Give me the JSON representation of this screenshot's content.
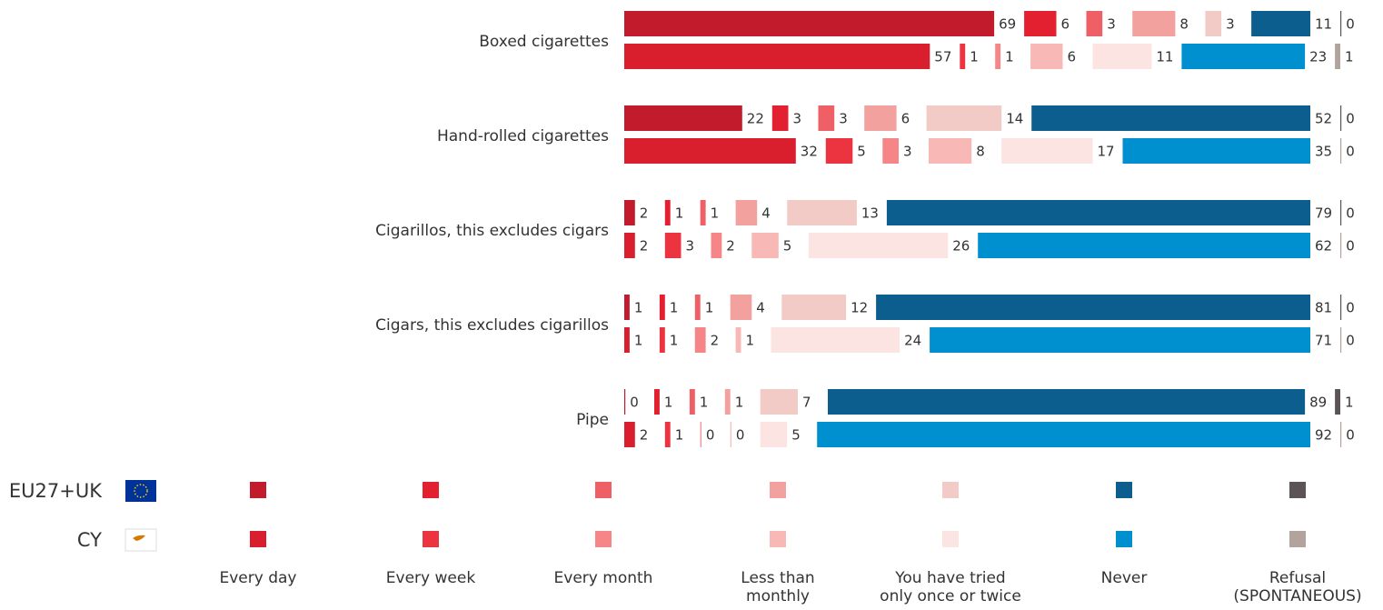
{
  "chart_data": {
    "type": "bar",
    "orientation": "horizontal",
    "stacked": true,
    "categories": [
      "Boxed cigarettes",
      "Hand-rolled cigarettes",
      "Cigarillos, this excludes cigars",
      "Cigars, this excludes cigarillos",
      "Pipe"
    ],
    "groups": [
      "EU27+UK",
      "CY"
    ],
    "series": [
      {
        "name": "Every day",
        "colors": [
          "#c21b2c",
          "#d91f2e"
        ],
        "values": [
          [
            69,
            57
          ],
          [
            22,
            32
          ],
          [
            2,
            2
          ],
          [
            1,
            1
          ],
          [
            0,
            2
          ]
        ]
      },
      {
        "name": "Every week",
        "colors": [
          "#e3202f",
          "#ec3340"
        ],
        "values": [
          [
            6,
            1
          ],
          [
            3,
            5
          ],
          [
            1,
            3
          ],
          [
            1,
            1
          ],
          [
            1,
            1
          ]
        ]
      },
      {
        "name": "Every month",
        "colors": [
          "#ef5f66",
          "#f58587"
        ],
        "values": [
          [
            3,
            1
          ],
          [
            3,
            3
          ],
          [
            1,
            2
          ],
          [
            1,
            2
          ],
          [
            1,
            0
          ]
        ]
      },
      {
        "name": "Less than\nmonthly",
        "colors": [
          "#f3a19f",
          "#f8b8b5"
        ],
        "values": [
          [
            8,
            6
          ],
          [
            6,
            8
          ],
          [
            4,
            5
          ],
          [
            4,
            1
          ],
          [
            1,
            0
          ]
        ]
      },
      {
        "name": "You have tried\nonly once or twice",
        "colors": [
          "#f2cbc7",
          "#fce4e2"
        ],
        "values": [
          [
            3,
            11
          ],
          [
            14,
            17
          ],
          [
            13,
            26
          ],
          [
            12,
            24
          ],
          [
            7,
            5
          ]
        ]
      },
      {
        "name": "Never",
        "colors": [
          "#0c5e8f",
          "#0090d0"
        ],
        "values": [
          [
            11,
            23
          ],
          [
            52,
            35
          ],
          [
            79,
            62
          ],
          [
            81,
            71
          ],
          [
            89,
            92
          ]
        ]
      },
      {
        "name": "Refusal\n(SPONTANEOUS)",
        "colors": [
          "#5c5356",
          "#b2a49c"
        ],
        "values": [
          [
            0,
            1
          ],
          [
            0,
            0
          ],
          [
            0,
            0
          ],
          [
            0,
            0
          ],
          [
            1,
            0
          ]
        ]
      }
    ]
  }
}
